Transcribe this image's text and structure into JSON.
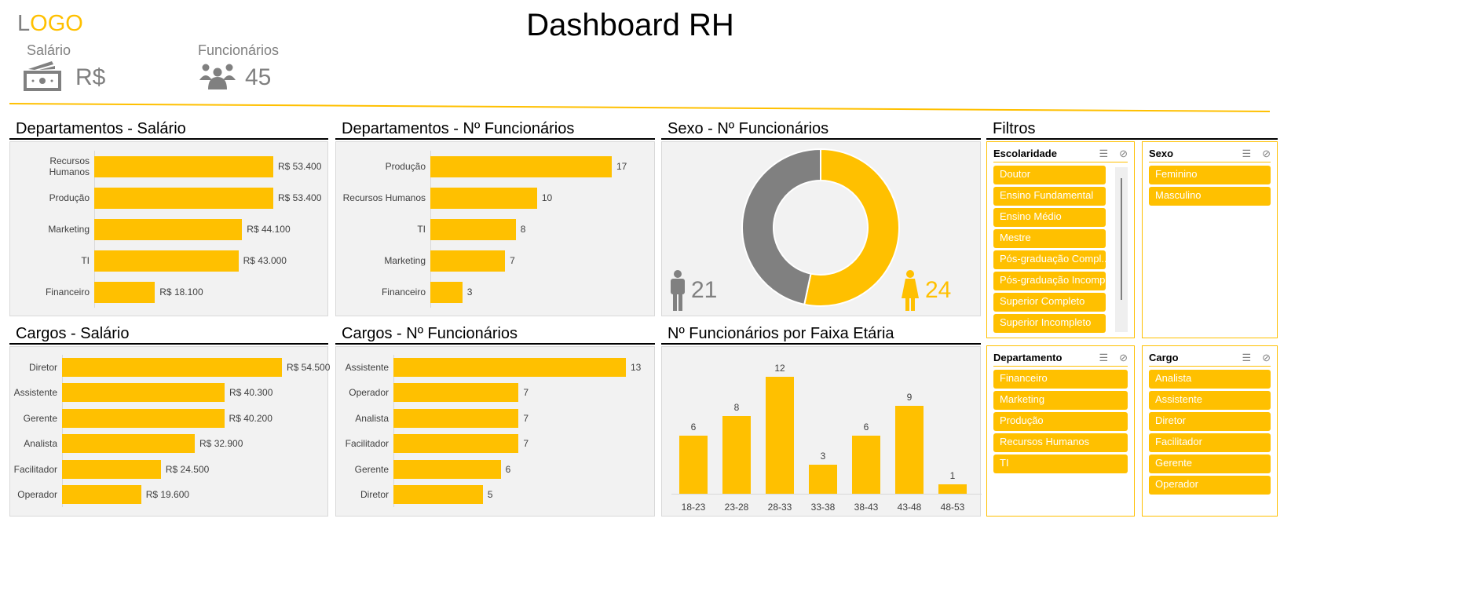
{
  "header": {
    "logo_prefix": "L",
    "logo_rest": "OGO",
    "title": "Dashboard RH",
    "kpis": [
      {
        "label": "Salário",
        "value": "R$",
        "icon": "money-icon"
      },
      {
        "label": "Funcionários",
        "value": "45",
        "icon": "people-icon"
      }
    ]
  },
  "colors": {
    "accent": "#FFC000",
    "gray": "#808080",
    "panel": "#F2F2F2"
  },
  "sections": {
    "dept_salary": "Departamentos - Salário",
    "dept_count": "Departamentos - Nº Funcionários",
    "sex_count": "Sexo - Nº Funcionários",
    "cargo_salary": "Cargos - Salário",
    "cargo_count": "Cargos - Nº Funcionários",
    "age_count": "Nº Funcionários por Faixa Etária",
    "filters": "Filtros"
  },
  "chart_data": [
    {
      "id": "dept_salary",
      "type": "bar",
      "orientation": "horizontal",
      "categories": [
        "Recursos Humanos",
        "Produção",
        "Marketing",
        "TI",
        "Financeiro"
      ],
      "values": [
        53400,
        53400,
        44100,
        43000,
        18100
      ],
      "labels": [
        "R$ 53.400",
        "R$ 53.400",
        "R$ 44.100",
        "R$ 43.000",
        "R$ 18.100"
      ]
    },
    {
      "id": "dept_count",
      "type": "bar",
      "orientation": "horizontal",
      "categories": [
        "Produção",
        "Recursos Humanos",
        "TI",
        "Marketing",
        "Financeiro"
      ],
      "values": [
        17,
        10,
        8,
        7,
        3
      ],
      "labels": [
        "17",
        "10",
        "8",
        "7",
        "3"
      ]
    },
    {
      "id": "sex_count",
      "type": "pie",
      "donut": true,
      "categories": [
        "Feminino",
        "Masculino"
      ],
      "values": [
        24,
        21
      ],
      "labels": [
        "24",
        "21"
      ],
      "colors": [
        "#FFC000",
        "#808080"
      ]
    },
    {
      "id": "cargo_salary",
      "type": "bar",
      "orientation": "horizontal",
      "categories": [
        "Diretor",
        "Assistente",
        "Gerente",
        "Analista",
        "Facilitador",
        "Operador"
      ],
      "values": [
        54500,
        40300,
        40200,
        32900,
        24500,
        19600
      ],
      "labels": [
        "R$ 54.500",
        "R$ 40.300",
        "R$ 40.200",
        "R$ 32.900",
        "R$ 24.500",
        "R$ 19.600"
      ]
    },
    {
      "id": "cargo_count",
      "type": "bar",
      "orientation": "horizontal",
      "categories": [
        "Assistente",
        "Operador",
        "Analista",
        "Facilitador",
        "Gerente",
        "Diretor"
      ],
      "values": [
        13,
        7,
        7,
        7,
        6,
        5
      ],
      "labels": [
        "13",
        "7",
        "7",
        "7",
        "6",
        "5"
      ]
    },
    {
      "id": "age_count",
      "type": "bar",
      "orientation": "vertical",
      "categories": [
        "18-23",
        "23-28",
        "28-33",
        "33-38",
        "38-43",
        "43-48",
        "48-53"
      ],
      "values": [
        6,
        8,
        12,
        3,
        6,
        9,
        1
      ],
      "labels": [
        "6",
        "8",
        "12",
        "3",
        "6",
        "9",
        "1"
      ]
    }
  ],
  "slicers": [
    {
      "title": "Escolaridade",
      "items": [
        "Doutor",
        "Ensino Fundamental",
        "Ensino Médio",
        "Mestre",
        "Pós-graduação Compl...",
        "Pós-graduação Incomp...",
        "Superior Completo",
        "Superior Incompleto"
      ],
      "scrollbar": true
    },
    {
      "title": "Sexo",
      "items": [
        "Feminino",
        "Masculino"
      ]
    },
    {
      "title": "Departamento",
      "items": [
        "Financeiro",
        "Marketing",
        "Produção",
        "Recursos Humanos",
        "TI"
      ]
    },
    {
      "title": "Cargo",
      "items": [
        "Analista",
        "Assistente",
        "Diretor",
        "Facilitador",
        "Gerente",
        "Operador"
      ]
    }
  ],
  "slicer_icons": {
    "multi_select": "☰",
    "clear_filter": "⊘"
  }
}
